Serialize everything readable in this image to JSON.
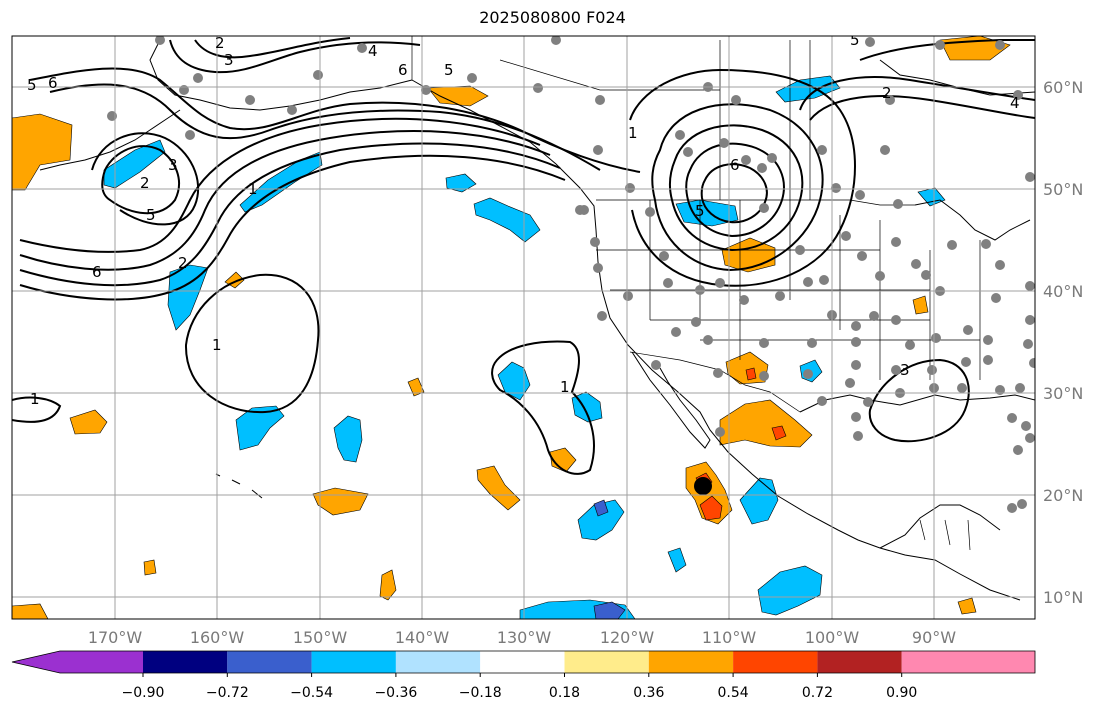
{
  "title": "2025080800 F024",
  "lon_ticks": [
    "170°W",
    "160°W",
    "150°W",
    "140°W",
    "130°W",
    "120°W",
    "110°W",
    "100°W",
    "90°W"
  ],
  "lat_ticks": [
    "60°N",
    "50°N",
    "40°N",
    "30°N",
    "20°N",
    "10°N"
  ],
  "colorbar": {
    "colors": [
      "#9b30d0",
      "#000080",
      "#3a5fcd",
      "#00bfff",
      "#b0e2ff",
      "#ffffff",
      "#ffec8b",
      "#ffa500",
      "#ff4500",
      "#b22222",
      "#ff88b0"
    ],
    "labels": [
      "−0.90",
      "−0.72",
      "−0.54",
      "−0.36",
      "−0.18",
      "0.18",
      "0.36",
      "0.54",
      "0.72",
      "0.90"
    ]
  },
  "contour_labels": [
    {
      "text": "6"
    },
    {
      "text": "5"
    },
    {
      "text": "4"
    },
    {
      "text": "3"
    },
    {
      "text": "2"
    },
    {
      "text": "2"
    },
    {
      "text": "3"
    },
    {
      "text": "5"
    },
    {
      "text": "6"
    },
    {
      "text": "2"
    },
    {
      "text": "1"
    },
    {
      "text": "1"
    },
    {
      "text": "1"
    },
    {
      "text": "6"
    },
    {
      "text": "5"
    },
    {
      "text": "1"
    },
    {
      "text": "6"
    },
    {
      "text": "5"
    },
    {
      "text": "5"
    },
    {
      "text": "4"
    },
    {
      "text": "3"
    },
    {
      "text": "2"
    },
    {
      "text": "1"
    }
  ]
}
